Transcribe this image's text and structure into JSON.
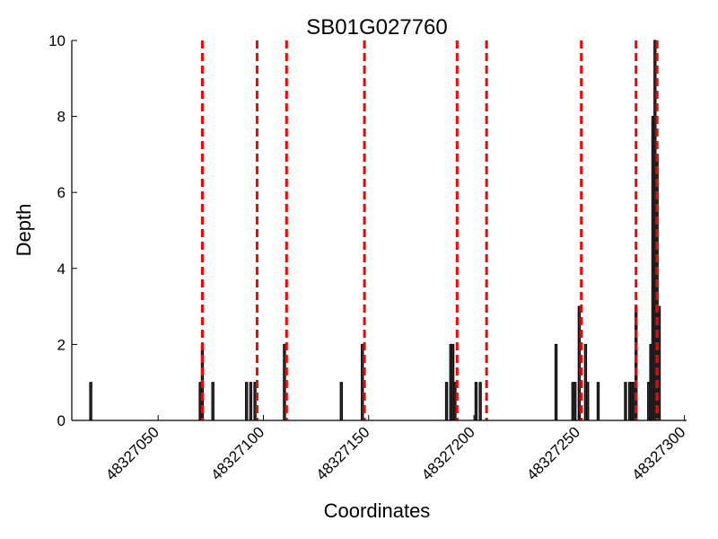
{
  "chart_data": {
    "type": "bar",
    "title": "SB01G027760",
    "xlabel": "Coordinates",
    "ylabel": "Depth",
    "xlim": [
      48327009,
      48327301
    ],
    "ylim": [
      0,
      10
    ],
    "xticks": [
      48327050,
      48327100,
      48327150,
      48327200,
      48327250,
      48327300
    ],
    "yticks": [
      0,
      2,
      4,
      6,
      8,
      10
    ],
    "bar_color": "#333333",
    "bar_width": 1,
    "bars": [
      {
        "x": 48327018,
        "y": 1
      },
      {
        "x": 48327070,
        "y": 1
      },
      {
        "x": 48327071,
        "y": 2
      },
      {
        "x": 48327076,
        "y": 1
      },
      {
        "x": 48327092,
        "y": 1
      },
      {
        "x": 48327094,
        "y": 1
      },
      {
        "x": 48327096,
        "y": 1
      },
      {
        "x": 48327110,
        "y": 2
      },
      {
        "x": 48327137,
        "y": 1
      },
      {
        "x": 48327147,
        "y": 2
      },
      {
        "x": 48327187,
        "y": 1
      },
      {
        "x": 48327189,
        "y": 2
      },
      {
        "x": 48327190,
        "y": 2
      },
      {
        "x": 48327191,
        "y": 1
      },
      {
        "x": 48327201,
        "y": 1
      },
      {
        "x": 48327203,
        "y": 1
      },
      {
        "x": 48327239,
        "y": 2
      },
      {
        "x": 48327247,
        "y": 1
      },
      {
        "x": 48327248,
        "y": 1
      },
      {
        "x": 48327250,
        "y": 3
      },
      {
        "x": 48327253,
        "y": 2
      },
      {
        "x": 48327254,
        "y": 1
      },
      {
        "x": 48327259,
        "y": 1
      },
      {
        "x": 48327272,
        "y": 1
      },
      {
        "x": 48327274,
        "y": 1
      },
      {
        "x": 48327275,
        "y": 1
      },
      {
        "x": 48327276,
        "y": 1
      },
      {
        "x": 48327277,
        "y": 3
      },
      {
        "x": 48327283,
        "y": 1
      },
      {
        "x": 48327284,
        "y": 2
      },
      {
        "x": 48327285,
        "y": 8
      },
      {
        "x": 48327286,
        "y": 10
      },
      {
        "x": 48327287,
        "y": 7
      },
      {
        "x": 48327288,
        "y": 3
      }
    ],
    "markers": {
      "style": "dashed",
      "color": "#ff0000",
      "x": [
        48327071,
        48327097,
        48327111,
        48327148,
        48327192,
        48327206,
        48327251,
        48327277,
        48327287
      ]
    },
    "grid": false,
    "legend": "none"
  }
}
